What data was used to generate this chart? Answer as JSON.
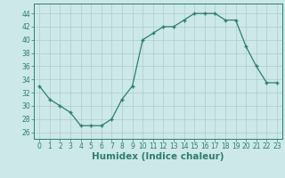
{
  "x": [
    0,
    1,
    2,
    3,
    4,
    5,
    6,
    7,
    8,
    9,
    10,
    11,
    12,
    13,
    14,
    15,
    16,
    17,
    18,
    19,
    20,
    21,
    22,
    23
  ],
  "y": [
    33,
    31,
    30,
    29,
    27,
    27,
    27,
    28,
    31,
    33,
    40,
    41,
    42,
    42,
    43,
    44,
    44,
    44,
    43,
    43,
    39,
    36,
    33.5,
    33.5
  ],
  "line_color": "#2e7d6e",
  "marker": "+",
  "marker_color": "#2e7d6e",
  "bg_color": "#cce8e8",
  "grid_color": "#aecccc",
  "xlabel": "Humidex (Indice chaleur)",
  "xlim": [
    -0.5,
    23.5
  ],
  "ylim": [
    25,
    45.5
  ],
  "yticks": [
    26,
    28,
    30,
    32,
    34,
    36,
    38,
    40,
    42,
    44
  ],
  "xticks": [
    0,
    1,
    2,
    3,
    4,
    5,
    6,
    7,
    8,
    9,
    10,
    11,
    12,
    13,
    14,
    15,
    16,
    17,
    18,
    19,
    20,
    21,
    22,
    23
  ],
  "font_color": "#2e7d6e",
  "tick_fontsize": 5.5,
  "xlabel_fontsize": 7.5,
  "linewidth": 0.9,
  "markersize": 3.5
}
